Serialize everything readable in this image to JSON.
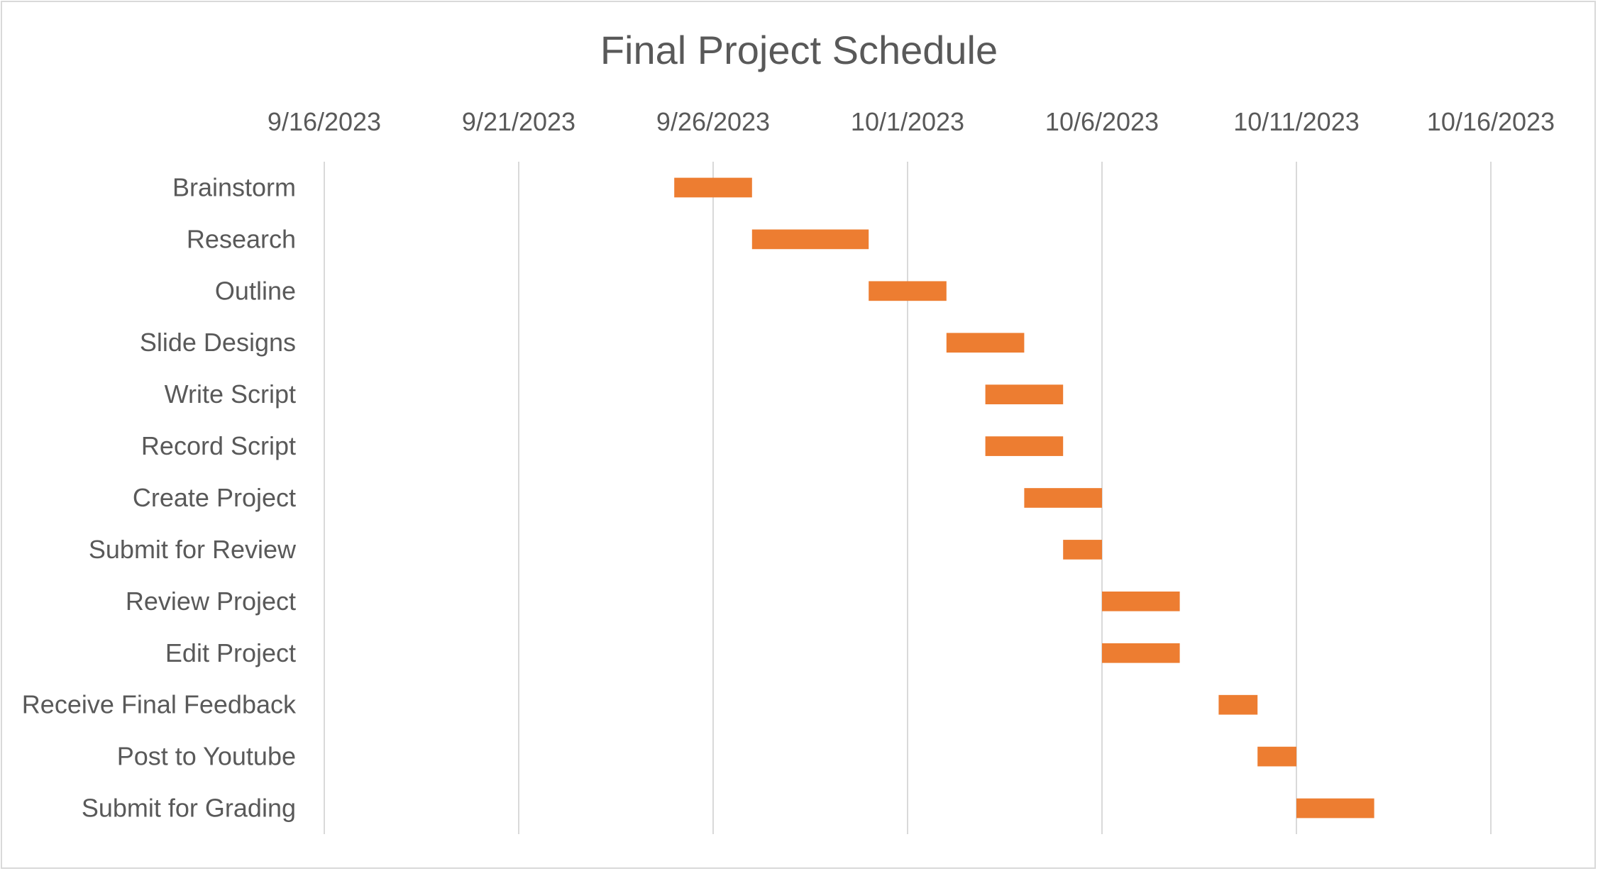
{
  "chart_data": {
    "type": "bar",
    "orientation": "horizontal",
    "title": "Final Project Schedule",
    "xlabel": "",
    "ylabel": "",
    "x_axis_position": "top",
    "x_ticks": [
      "9/16/2023",
      "9/21/2023",
      "9/26/2023",
      "10/1/2023",
      "10/6/2023",
      "10/11/2023",
      "10/16/2023"
    ],
    "xlim": [
      "2023-09-16",
      "2023-10-16"
    ],
    "grid": true,
    "legend": "none",
    "bar_color": "#ed7d31",
    "gridline_color": "#d9d9d9",
    "categories": [
      "Brainstorm",
      "Research",
      "Outline",
      "Slide Designs",
      "Write Script",
      "Record Script",
      "Create Project",
      "Submit for Review",
      "Review Project",
      "Edit Project",
      "Receive Final Feedback",
      "Post to Youtube",
      "Submit for Grading"
    ],
    "start": [
      "2023-09-25",
      "2023-09-27",
      "2023-09-30",
      "2023-10-02",
      "2023-10-03",
      "2023-10-03",
      "2023-10-04",
      "2023-10-05",
      "2023-10-06",
      "2023-10-06",
      "2023-10-09",
      "2023-10-10",
      "2023-10-11"
    ],
    "end": [
      "2023-09-27",
      "2023-09-30",
      "2023-10-02",
      "2023-10-04",
      "2023-10-05",
      "2023-10-05",
      "2023-10-06",
      "2023-10-06",
      "2023-10-08",
      "2023-10-08",
      "2023-10-10",
      "2023-10-11",
      "2023-10-13"
    ]
  }
}
